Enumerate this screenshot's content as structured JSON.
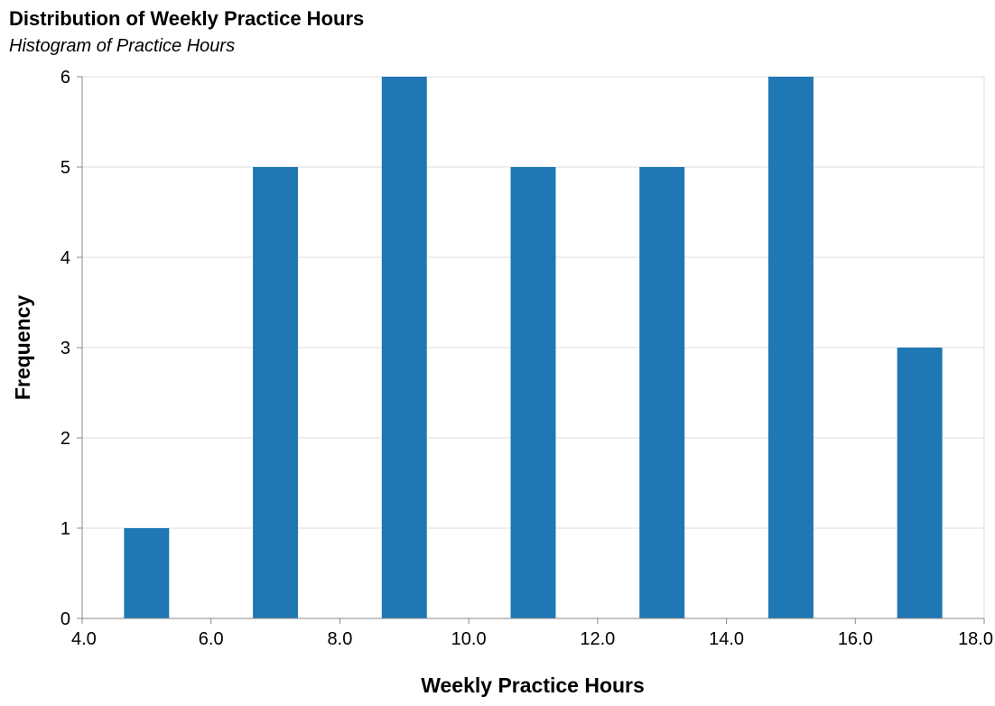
{
  "chart_data": {
    "type": "bar",
    "title": "Distribution of Weekly Practice Hours",
    "subtitle": "Histogram of Practice Hours",
    "xlabel": "Weekly Practice Hours",
    "ylabel": "Frequency",
    "xlim": [
      4.0,
      18.0
    ],
    "ylim": [
      0,
      6
    ],
    "x_ticks": [
      "4.0",
      "6.0",
      "8.0",
      "10.0",
      "12.0",
      "14.0",
      "16.0",
      "18.0"
    ],
    "y_ticks": [
      "0",
      "1",
      "2",
      "3",
      "4",
      "5",
      "6"
    ],
    "bin_width": 2.0,
    "bins": [
      {
        "start": 4.0,
        "end": 6.0,
        "count": 1
      },
      {
        "start": 6.0,
        "end": 8.0,
        "count": 5
      },
      {
        "start": 8.0,
        "end": 10.0,
        "count": 6
      },
      {
        "start": 10.0,
        "end": 12.0,
        "count": 5
      },
      {
        "start": 12.0,
        "end": 14.0,
        "count": 5
      },
      {
        "start": 14.0,
        "end": 16.0,
        "count": 6
      },
      {
        "start": 16.0,
        "end": 18.0,
        "count": 3
      }
    ],
    "bar_color": "#1f77b4",
    "grid": true,
    "legend": "none"
  }
}
